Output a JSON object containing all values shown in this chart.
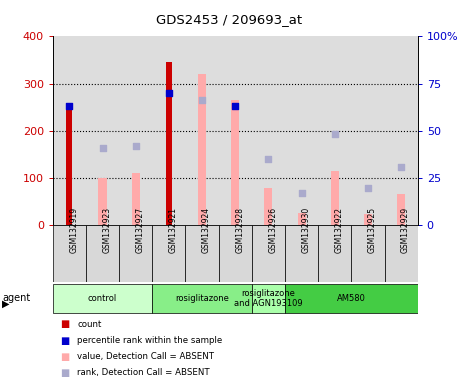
{
  "title": "GDS2453 / 209693_at",
  "samples": [
    "GSM132919",
    "GSM132923",
    "GSM132927",
    "GSM132921",
    "GSM132924",
    "GSM132928",
    "GSM132926",
    "GSM132930",
    "GSM132922",
    "GSM132925",
    "GSM132929"
  ],
  "count_values": [
    250,
    0,
    0,
    345,
    0,
    0,
    0,
    0,
    0,
    0,
    0
  ],
  "percentile_rank_values": [
    253,
    0,
    0,
    280,
    0,
    253,
    0,
    0,
    0,
    0,
    0
  ],
  "absent_value_bars": [
    0,
    100,
    110,
    0,
    320,
    265,
    78,
    25,
    115,
    22,
    65
  ],
  "absent_rank_dots": [
    0,
    163,
    167,
    0,
    265,
    0,
    140,
    67,
    193,
    78,
    123
  ],
  "ylim_left": [
    0,
    400
  ],
  "ylim_right": [
    0,
    100
  ],
  "yticks_left": [
    0,
    100,
    200,
    300,
    400
  ],
  "yticks_right": [
    0,
    25,
    50,
    75,
    100
  ],
  "ytick_labels_right": [
    "0",
    "25",
    "50",
    "75",
    "100%"
  ],
  "agent_groups": [
    {
      "label": "control",
      "start": 0,
      "end": 3,
      "color": "#ccffcc"
    },
    {
      "label": "rosiglitazone",
      "start": 3,
      "end": 6,
      "color": "#88ee88"
    },
    {
      "label": "rosiglitazone\nand AGN193109",
      "start": 6,
      "end": 7,
      "color": "#aaffaa"
    },
    {
      "label": "AM580",
      "start": 7,
      "end": 11,
      "color": "#44cc44"
    }
  ],
  "count_color": "#cc0000",
  "percentile_color": "#0000cc",
  "absent_value_color": "#ffaaaa",
  "absent_rank_color": "#aaaacc",
  "col_bg_color": "#dddddd",
  "plot_bg": "#ffffff"
}
